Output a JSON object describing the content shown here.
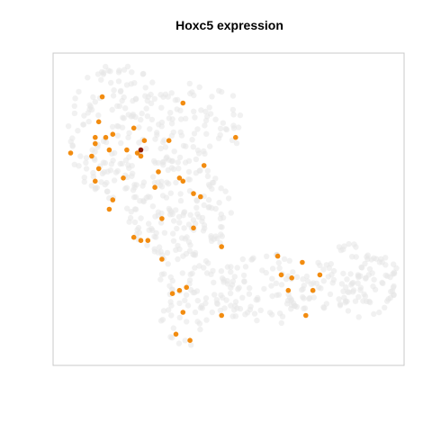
{
  "chart_data": {
    "type": "scatter",
    "title": "Hoxc5 expression",
    "xlabel": "",
    "ylabel": "",
    "axes_visible": false,
    "grid": false,
    "legend": "none",
    "colors": {
      "background_cells": "#e6e6e6",
      "low_expression": "#f28c10",
      "high_expression": "#8b1a0a",
      "frame": "#c8c8c8"
    },
    "xlim": [
      0,
      100
    ],
    "ylim": [
      0,
      100
    ],
    "background_regions": [
      {
        "name": "upper-left lobe",
        "cx": 19,
        "cy": 75,
        "rx": 15,
        "ry": 22,
        "n": 150
      },
      {
        "name": "upper arm",
        "cx": 37,
        "cy": 78,
        "rx": 18,
        "ry": 14,
        "n": 90
      },
      {
        "name": "central stem",
        "cx": 36,
        "cy": 50,
        "rx": 15,
        "ry": 17,
        "n": 150
      },
      {
        "name": "lower stem",
        "cx": 38,
        "cy": 23,
        "rx": 9,
        "ry": 17,
        "n": 70
      },
      {
        "name": "bridge",
        "cx": 60,
        "cy": 24,
        "rx": 15,
        "ry": 12,
        "n": 110
      },
      {
        "name": "right lobe",
        "cx": 86,
        "cy": 27,
        "rx": 13,
        "ry": 12,
        "n": 110
      }
    ],
    "expressing_points": [
      {
        "x": 14,
        "y": 86,
        "level": "low"
      },
      {
        "x": 37,
        "y": 84,
        "level": "low"
      },
      {
        "x": 13,
        "y": 78,
        "level": "low"
      },
      {
        "x": 12,
        "y": 73,
        "level": "low"
      },
      {
        "x": 17,
        "y": 74,
        "level": "low"
      },
      {
        "x": 15,
        "y": 73,
        "level": "low"
      },
      {
        "x": 23,
        "y": 76,
        "level": "low"
      },
      {
        "x": 12,
        "y": 71,
        "level": "low"
      },
      {
        "x": 26,
        "y": 72,
        "level": "low"
      },
      {
        "x": 33,
        "y": 72,
        "level": "low"
      },
      {
        "x": 52,
        "y": 73,
        "level": "low"
      },
      {
        "x": 5,
        "y": 68,
        "level": "low"
      },
      {
        "x": 11,
        "y": 67,
        "level": "low"
      },
      {
        "x": 16,
        "y": 69,
        "level": "low"
      },
      {
        "x": 21,
        "y": 69,
        "level": "low"
      },
      {
        "x": 25,
        "y": 69,
        "level": "high"
      },
      {
        "x": 24,
        "y": 68,
        "level": "low"
      },
      {
        "x": 25,
        "y": 67,
        "level": "low"
      },
      {
        "x": 43,
        "y": 64,
        "level": "low"
      },
      {
        "x": 13,
        "y": 63,
        "level": "low"
      },
      {
        "x": 30,
        "y": 62,
        "level": "low"
      },
      {
        "x": 12,
        "y": 59,
        "level": "low"
      },
      {
        "x": 20,
        "y": 60,
        "level": "low"
      },
      {
        "x": 36,
        "y": 60,
        "level": "low"
      },
      {
        "x": 37,
        "y": 59,
        "level": "low"
      },
      {
        "x": 29,
        "y": 57,
        "level": "low"
      },
      {
        "x": 40,
        "y": 55,
        "level": "low"
      },
      {
        "x": 42,
        "y": 54,
        "level": "low"
      },
      {
        "x": 17,
        "y": 53,
        "level": "low"
      },
      {
        "x": 16,
        "y": 50,
        "level": "low"
      },
      {
        "x": 31,
        "y": 47,
        "level": "low"
      },
      {
        "x": 40,
        "y": 44,
        "level": "low"
      },
      {
        "x": 23,
        "y": 41,
        "level": "low"
      },
      {
        "x": 25,
        "y": 40,
        "level": "low"
      },
      {
        "x": 27,
        "y": 40,
        "level": "low"
      },
      {
        "x": 48,
        "y": 38,
        "level": "low"
      },
      {
        "x": 64,
        "y": 35,
        "level": "low"
      },
      {
        "x": 71,
        "y": 33,
        "level": "low"
      },
      {
        "x": 31,
        "y": 34,
        "level": "low"
      },
      {
        "x": 65,
        "y": 29,
        "level": "low"
      },
      {
        "x": 68,
        "y": 28,
        "level": "low"
      },
      {
        "x": 76,
        "y": 29,
        "level": "low"
      },
      {
        "x": 38,
        "y": 25,
        "level": "low"
      },
      {
        "x": 36,
        "y": 24,
        "level": "low"
      },
      {
        "x": 34,
        "y": 23,
        "level": "low"
      },
      {
        "x": 67,
        "y": 24,
        "level": "low"
      },
      {
        "x": 74,
        "y": 24,
        "level": "low"
      },
      {
        "x": 37,
        "y": 17,
        "level": "low"
      },
      {
        "x": 48,
        "y": 16,
        "level": "low"
      },
      {
        "x": 72,
        "y": 16,
        "level": "low"
      },
      {
        "x": 35,
        "y": 10,
        "level": "low"
      },
      {
        "x": 39,
        "y": 8,
        "level": "low"
      }
    ]
  }
}
